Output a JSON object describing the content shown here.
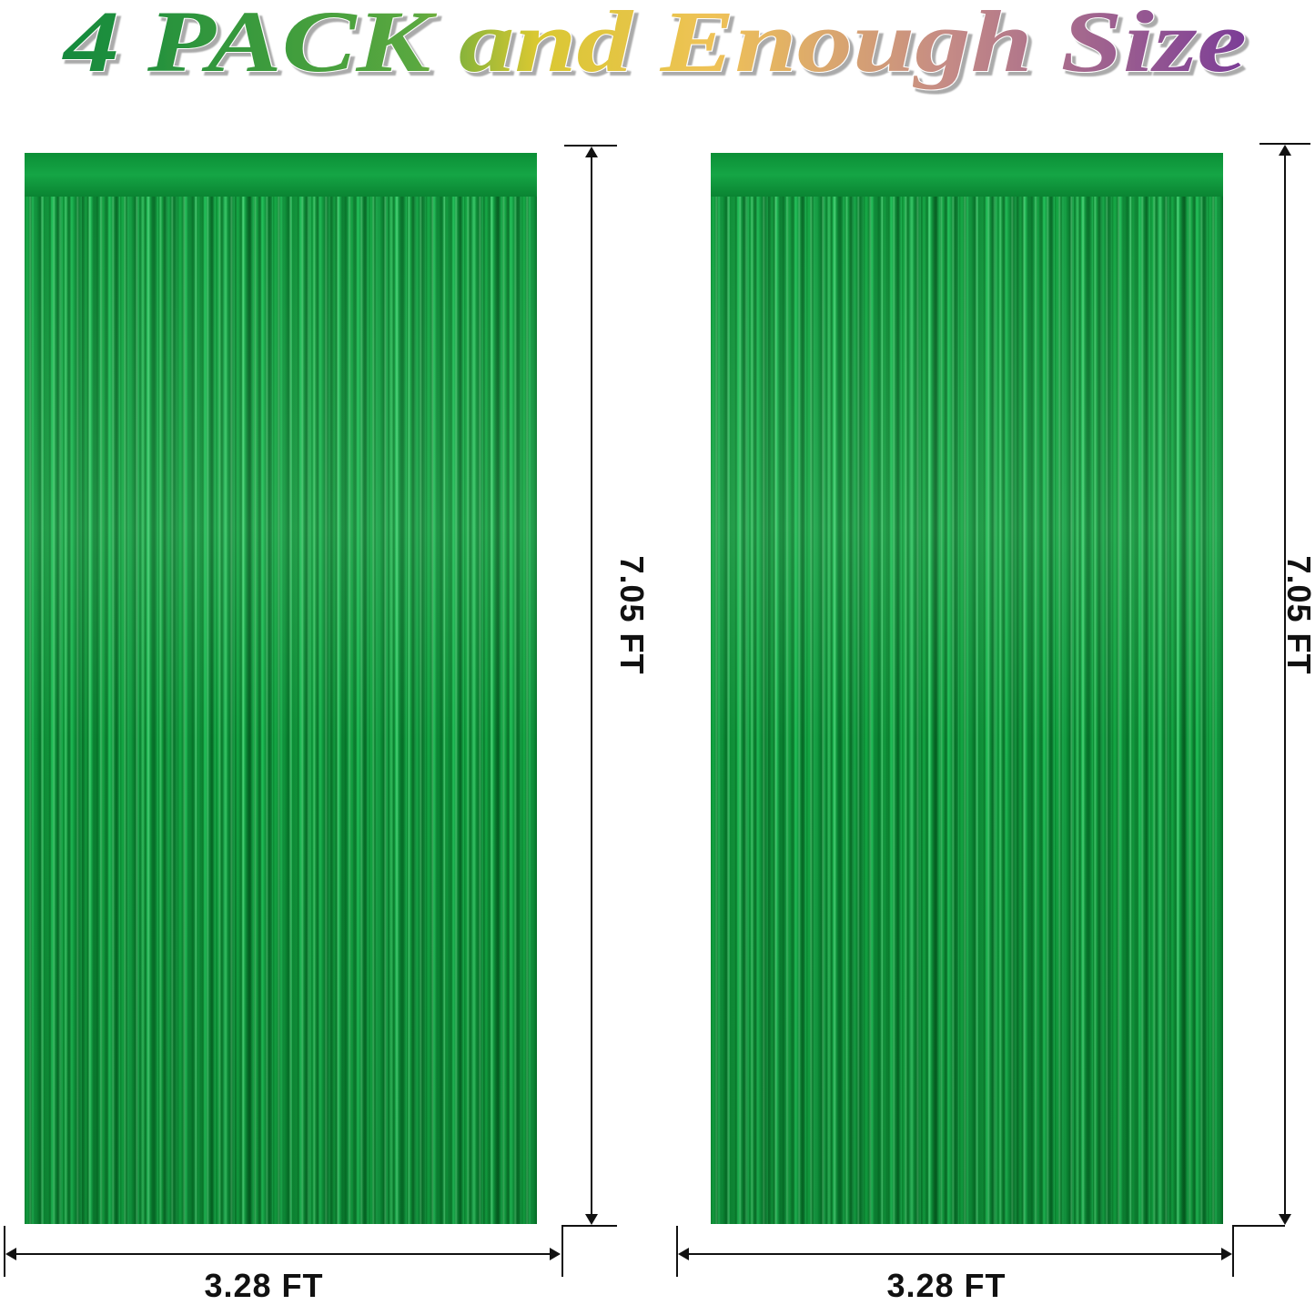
{
  "headline": {
    "text": "4 PACK and Enough Size",
    "gradient_colors": [
      "#148a3c",
      "#5aa83f",
      "#d9c832",
      "#efc257",
      "#c48a86",
      "#7b3c97"
    ]
  },
  "products": [
    {
      "name": "green foil fringe curtain",
      "color": "#0f9a3c",
      "height_label": "7.05 FT",
      "width_label": "3.28 FT"
    },
    {
      "name": "green foil fringe curtain",
      "color": "#0f9a3c",
      "height_label": "7.05 FT",
      "width_label": "3.28 FT"
    }
  ]
}
